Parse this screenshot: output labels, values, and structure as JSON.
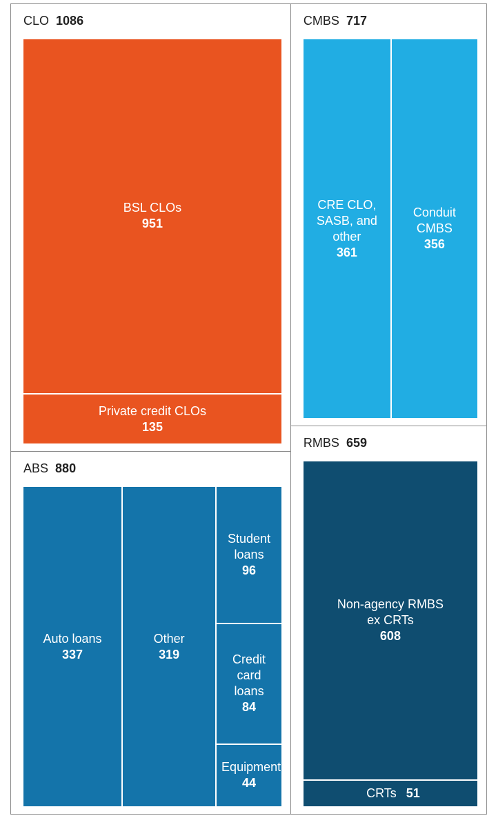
{
  "chart_data": {
    "type": "treemap",
    "groups": [
      {
        "name": "CLO",
        "value": 1086,
        "color": "#e95420",
        "children": [
          {
            "name": "BSL CLOs",
            "value": 951
          },
          {
            "name": "Private credit CLOs",
            "value": 135
          }
        ]
      },
      {
        "name": "CMBS",
        "value": 717,
        "color": "#21ade3",
        "children": [
          {
            "name": "CRE CLO, SASB, and other",
            "value": 361
          },
          {
            "name": "Conduit CMBS",
            "value": 356
          }
        ]
      },
      {
        "name": "ABS",
        "value": 880,
        "color": "#1474aa",
        "children": [
          {
            "name": "Auto loans",
            "value": 337
          },
          {
            "name": "Other",
            "value": 319
          },
          {
            "name": "Student loans",
            "value": 96
          },
          {
            "name": "Credit card loans",
            "value": 84
          },
          {
            "name": "Equipment",
            "value": 44
          }
        ]
      },
      {
        "name": "RMBS",
        "value": 659,
        "color": "#0f4d70",
        "children": [
          {
            "name": "Non-agency RMBS ex CRTs",
            "value": 608
          },
          {
            "name": "CRTs",
            "value": 51
          }
        ]
      }
    ]
  }
}
